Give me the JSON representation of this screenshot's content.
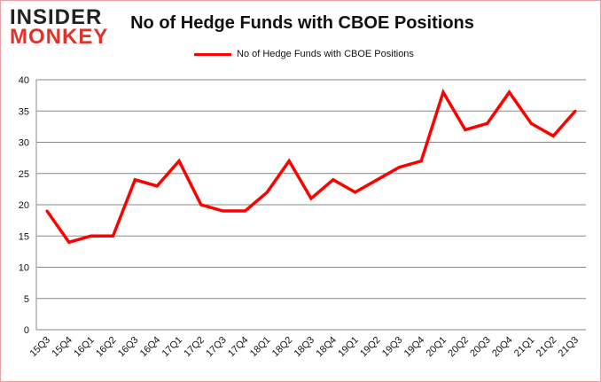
{
  "brand": {
    "logo_text": "INSIDER MONKEY"
  },
  "chart_data": {
    "type": "line",
    "title": "No of Hedge Funds with CBOE Positions",
    "xlabel": "",
    "ylabel": "",
    "ylim": [
      0,
      40
    ],
    "yticks": [
      0,
      5,
      10,
      15,
      20,
      25,
      30,
      35,
      40
    ],
    "grid": true,
    "legend_position": "top",
    "categories": [
      "15Q3",
      "15Q4",
      "16Q1",
      "16Q2",
      "16Q3",
      "16Q4",
      "17Q1",
      "17Q2",
      "17Q3",
      "17Q4",
      "18Q1",
      "18Q2",
      "18Q3",
      "18Q4",
      "19Q1",
      "19Q2",
      "19Q3",
      "19Q4",
      "20Q1",
      "20Q2",
      "20Q3",
      "20Q4",
      "21Q1",
      "21Q2",
      "21Q3"
    ],
    "series": [
      {
        "name": "No of Hedge Funds with CBOE Positions",
        "color": "#ff0000",
        "values": [
          19,
          14,
          15,
          15,
          24,
          23,
          27,
          20,
          19,
          19,
          22,
          27,
          21,
          24,
          22,
          24,
          26,
          27,
          38,
          32,
          33,
          38,
          33,
          31,
          35
        ]
      }
    ]
  }
}
